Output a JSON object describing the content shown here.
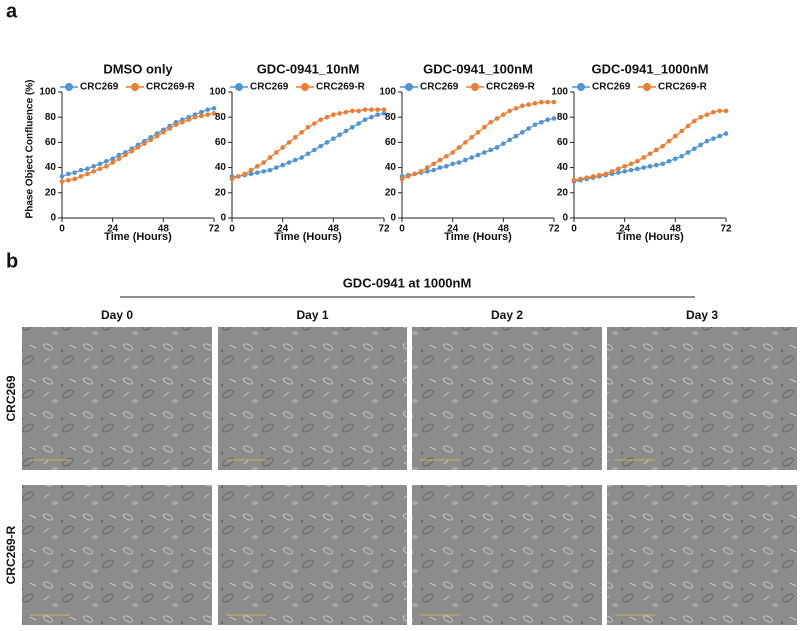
{
  "panel_labels": [
    "a",
    "b"
  ],
  "chart_data": [
    {
      "type": "line",
      "title": "DMSO only",
      "ylabel": "Phase Object Confluence (%)",
      "xlabel": "Time (Hours)",
      "legend": "top",
      "x": [
        0,
        3,
        6,
        9,
        12,
        15,
        18,
        21,
        24,
        27,
        30,
        33,
        36,
        39,
        42,
        45,
        48,
        51,
        54,
        57,
        60,
        63,
        66,
        69,
        72
      ],
      "series": [
        {
          "name": "CRC269",
          "color": "#4f94d4",
          "values": [
            33,
            35,
            36,
            38,
            39,
            41,
            43,
            45,
            47,
            50,
            52,
            55,
            58,
            61,
            64,
            67,
            70,
            73,
            76,
            78,
            80,
            82,
            84,
            86,
            87
          ]
        },
        {
          "name": "CRC269-R",
          "color": "#ed7d31",
          "values": [
            29,
            30,
            31,
            33,
            35,
            37,
            39,
            41,
            44,
            47,
            50,
            53,
            56,
            59,
            62,
            65,
            68,
            71,
            74,
            76,
            78,
            80,
            81,
            82,
            83
          ]
        }
      ],
      "xlim": [
        0,
        72
      ],
      "xticks": [
        0,
        24,
        48,
        72
      ],
      "ylim": [
        0,
        100
      ],
      "yticks": [
        0,
        20,
        40,
        60,
        80,
        100
      ]
    },
    {
      "type": "line",
      "title": "GDC-0941_10nM",
      "xlabel": "Time (Hours)",
      "legend": "top",
      "x": [
        0,
        3,
        6,
        9,
        12,
        15,
        18,
        21,
        24,
        27,
        30,
        33,
        36,
        39,
        42,
        45,
        48,
        51,
        54,
        57,
        60,
        63,
        66,
        69,
        72
      ],
      "series": [
        {
          "name": "CRC269",
          "color": "#4f94d4",
          "values": [
            33,
            33,
            34,
            35,
            36,
            37,
            38,
            40,
            42,
            44,
            46,
            48,
            51,
            54,
            57,
            60,
            63,
            66,
            69,
            72,
            75,
            78,
            80,
            82,
            83
          ]
        },
        {
          "name": "CRC269-R",
          "color": "#ed7d31",
          "values": [
            31,
            33,
            35,
            38,
            41,
            44,
            48,
            52,
            56,
            60,
            64,
            68,
            72,
            75,
            78,
            80,
            82,
            83,
            84,
            85,
            85,
            86,
            86,
            86,
            86
          ]
        }
      ],
      "xlim": [
        0,
        72
      ],
      "xticks": [
        0,
        24,
        48,
        72
      ],
      "ylim": [
        0,
        100
      ],
      "yticks": [
        0,
        20,
        40,
        60,
        80,
        100
      ]
    },
    {
      "type": "line",
      "title": "GDC-0941_100nM",
      "xlabel": "Time (Hours)",
      "legend": "top",
      "x": [
        0,
        3,
        6,
        9,
        12,
        15,
        18,
        21,
        24,
        27,
        30,
        33,
        36,
        39,
        42,
        45,
        48,
        51,
        54,
        57,
        60,
        63,
        66,
        69,
        72
      ],
      "series": [
        {
          "name": "CRC269",
          "color": "#4f94d4",
          "values": [
            33,
            34,
            35,
            36,
            37,
            38,
            40,
            41,
            43,
            44,
            46,
            48,
            50,
            52,
            54,
            56,
            59,
            62,
            65,
            68,
            71,
            74,
            76,
            78,
            79
          ]
        },
        {
          "name": "CRC269-R",
          "color": "#ed7d31",
          "values": [
            31,
            33,
            35,
            37,
            40,
            43,
            46,
            49,
            52,
            56,
            60,
            64,
            68,
            72,
            76,
            79,
            82,
            85,
            87,
            89,
            90,
            91,
            92,
            92,
            92
          ]
        }
      ],
      "xlim": [
        0,
        72
      ],
      "xticks": [
        0,
        24,
        48,
        72
      ],
      "ylim": [
        0,
        100
      ],
      "yticks": [
        0,
        20,
        40,
        60,
        80,
        100
      ]
    },
    {
      "type": "line",
      "title": "GDC-0941_1000nM",
      "xlabel": "Time (Hours)",
      "legend": "top",
      "x": [
        0,
        3,
        6,
        9,
        12,
        15,
        18,
        21,
        24,
        27,
        30,
        33,
        36,
        39,
        42,
        45,
        48,
        51,
        54,
        57,
        60,
        63,
        66,
        69,
        72
      ],
      "series": [
        {
          "name": "CRC269",
          "color": "#4f94d4",
          "values": [
            29,
            30,
            31,
            32,
            33,
            34,
            35,
            36,
            37,
            38,
            39,
            40,
            41,
            42,
            43,
            45,
            47,
            49,
            52,
            55,
            58,
            61,
            63,
            65,
            67
          ]
        },
        {
          "name": "CRC269-R",
          "color": "#ed7d31",
          "values": [
            30,
            31,
            32,
            33,
            34,
            35,
            37,
            39,
            41,
            43,
            45,
            48,
            51,
            54,
            57,
            61,
            65,
            69,
            73,
            77,
            80,
            82,
            84,
            85,
            85
          ]
        }
      ],
      "xlim": [
        0,
        72
      ],
      "xticks": [
        0,
        24,
        48,
        72
      ],
      "ylim": [
        0,
        100
      ],
      "yticks": [
        0,
        20,
        40,
        60,
        80,
        100
      ]
    }
  ],
  "panel_b": {
    "title": "GDC-0941 at 1000nM",
    "columns": [
      "Day 0",
      "Day 1",
      "Day 2",
      "Day 3"
    ],
    "rows": [
      "CRC269",
      "CRC269-R"
    ]
  }
}
